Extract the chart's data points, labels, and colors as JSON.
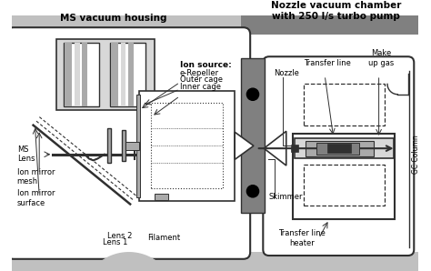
{
  "title_left": "MS vacuum housing",
  "title_right": "Nozzle vacuum chamber\nwith 250 l/s turbo pump",
  "labels": {
    "ion_source": "Ion source:",
    "e_repeller": "e-Repeller",
    "outer_cage": "Outer cage",
    "inner_cage": "Inner cage",
    "ms_lens": "MS\nLens",
    "ion_mirror_mesh": "Ion mirror\nmesh",
    "ion_mirror_surface": "Ion mirror\nsurface",
    "lens2": "Lens 2",
    "lens1": "Lens 1",
    "filament": "Filament",
    "transfer_line": "Transfer line",
    "nozzle": "Nozzle",
    "make_up_gas": "Make\nup gas",
    "gc_column": "GC Column",
    "skimmer": "Skimmer",
    "transfer_line_heater": "Transfer line\nheater"
  },
  "colors": {
    "dark": "#303030",
    "gray": "#808080",
    "lgray": "#aaaaaa",
    "vlgray": "#d8d8d8",
    "white": "#ffffff",
    "black": "#000000",
    "bg_gray": "#c0c0c0"
  }
}
